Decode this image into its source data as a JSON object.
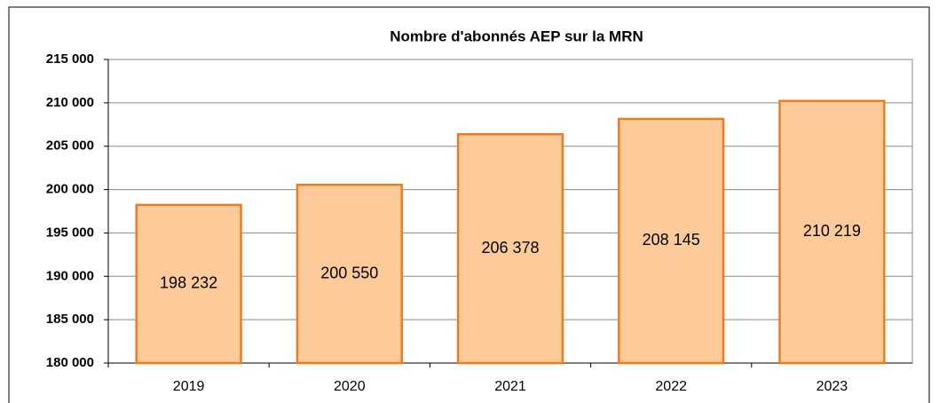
{
  "chart_data": {
    "type": "bar",
    "title": "Nombre d'abonnés AEP sur la MRN",
    "categories": [
      "2019",
      "2020",
      "2021",
      "2022",
      "2023"
    ],
    "values": [
      198232,
      200550,
      206378,
      208145,
      210219
    ],
    "value_labels": [
      "198 232",
      "200 550",
      "206 378",
      "208 145",
      "210 219"
    ],
    "color": "#fdca99",
    "edge_color": "#f07b1f",
    "ylim": [
      180000,
      215000
    ],
    "yticks": [
      {
        "value": 180000,
        "label": "180 000"
      },
      {
        "value": 185000,
        "label": "185 000"
      },
      {
        "value": 190000,
        "label": "190 000"
      },
      {
        "value": 195000,
        "label": "195 000"
      },
      {
        "value": 200000,
        "label": "200 000"
      },
      {
        "value": 205000,
        "label": "205 000"
      },
      {
        "value": 210000,
        "label": "210 000"
      },
      {
        "value": 215000,
        "label": "215 000"
      }
    ],
    "grid": true
  }
}
